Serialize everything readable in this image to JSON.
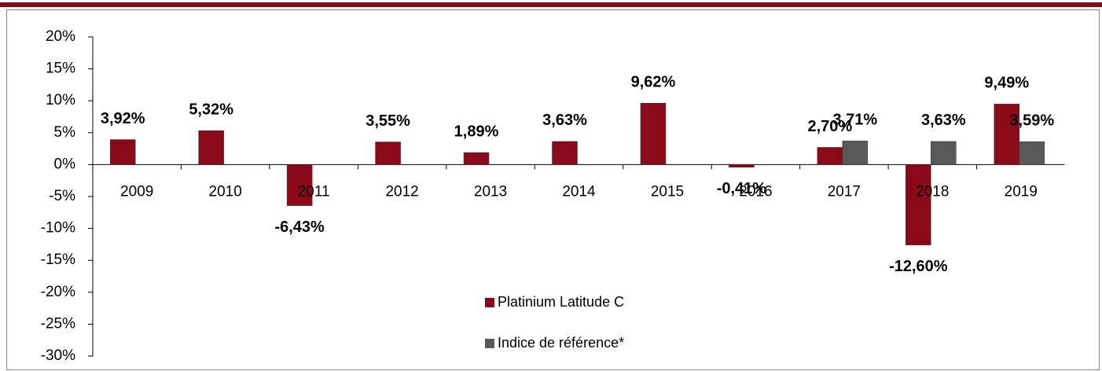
{
  "chart_data": {
    "type": "bar",
    "categories": [
      "2009",
      "2010",
      "2011",
      "2012",
      "2013",
      "2014",
      "2015",
      "2016",
      "2017",
      "2018",
      "2019"
    ],
    "series": [
      {
        "name": "Platinium Latitude C",
        "color": "#8b0a1a",
        "values": [
          3.92,
          5.32,
          -6.43,
          3.55,
          1.89,
          3.63,
          9.62,
          -0.41,
          2.7,
          -12.6,
          9.49
        ],
        "value_labels": [
          "3,92%",
          "5,32%",
          "-6,43%",
          "3,55%",
          "1,89%",
          "3,63%",
          "9,62%",
          "-0,41%",
          "2,70%",
          "-12,60%",
          "9,49%"
        ]
      },
      {
        "name": "Indice de référence*",
        "color": "#595959",
        "values": [
          null,
          null,
          null,
          null,
          null,
          null,
          null,
          null,
          3.71,
          3.63,
          3.59
        ],
        "value_labels": [
          null,
          null,
          null,
          null,
          null,
          null,
          null,
          null,
          "3,71%",
          "3,63%",
          "3,59%"
        ]
      }
    ],
    "ylim": [
      -30,
      20
    ],
    "yticks": [
      {
        "value": -30,
        "label": "-30%"
      },
      {
        "value": -25,
        "label": "-25%"
      },
      {
        "value": -20,
        "label": "-20%"
      },
      {
        "value": -15,
        "label": "-15%"
      },
      {
        "value": -10,
        "label": "-10%"
      },
      {
        "value": -5,
        "label": "-5%"
      },
      {
        "value": 0,
        "label": "0%"
      },
      {
        "value": 5,
        "label": "5%"
      },
      {
        "value": 10,
        "label": "10%"
      },
      {
        "value": 15,
        "label": "15%"
      },
      {
        "value": 20,
        "label": "20%"
      }
    ]
  }
}
